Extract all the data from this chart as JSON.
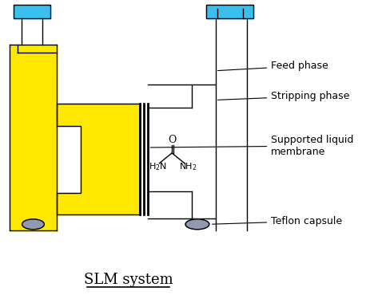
{
  "title": "SLM system",
  "title_fontsize": 13,
  "background_color": "#ffffff",
  "yellow_color": "#FFE800",
  "cyan_color": "#3BBFEF",
  "gray_color": "#9099B0",
  "black_color": "#000000",
  "labels": {
    "feed_phase": "Feed phase",
    "stripping_phase": "Stripping phase",
    "supported_liquid_membrane": "Supported liquid\nmembrane",
    "teflon_capsule": "Teflon capsule"
  }
}
